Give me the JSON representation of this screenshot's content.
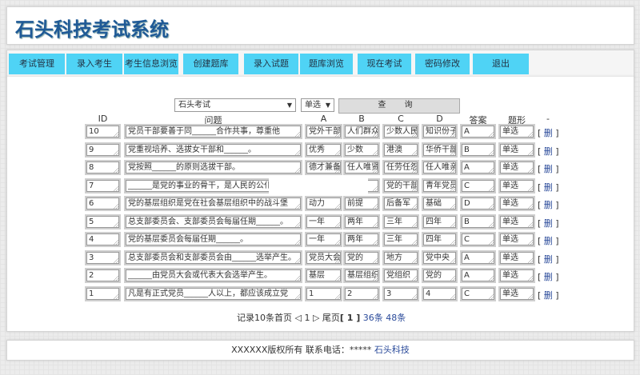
{
  "header": {
    "title": "石头科技考试系统"
  },
  "nav": [
    "考试管理",
    "录入考生",
    "考生信息浏览",
    "创建题库",
    "录入试题",
    "题库浏览",
    "现在考试",
    "密码修改",
    "退出"
  ],
  "filter": {
    "exam": "石头考试",
    "type": "单选",
    "query_button": "查 询"
  },
  "columns": [
    "ID",
    "问题",
    "A",
    "B",
    "C",
    "D",
    "答案",
    "题形",
    "-"
  ],
  "delete_label": "删",
  "rows": [
    {
      "id": "10",
      "q": "党员干部要善于同______合作共事，尊重他",
      "a": "党外干部",
      "b": "人们群众",
      "c": "少数人民",
      "d": "知识份子",
      "ans": "A",
      "type": "单选"
    },
    {
      "id": "9",
      "q": "党重视培养、选拔女干部和______。",
      "a": "优秀",
      "b": "少数",
      "c": "港澳",
      "d": "华侨干部",
      "ans": "B",
      "type": "单选"
    },
    {
      "id": "8",
      "q": "党按照______的原则选拔干部。",
      "a": "德才兼备",
      "b": "任人唯贤",
      "c": "任劳任怨",
      "d": "任人唯亲",
      "ans": "A",
      "type": "单选"
    },
    {
      "id": "7",
      "q": "______是党的事业的骨干，是人民的公仆",
      "a": "",
      "b": "",
      "c": "党的干部",
      "d": "青年党员",
      "ans": "C",
      "type": "单选"
    },
    {
      "id": "6",
      "q": "党的基层组织是党在社会基层组织中的战斗堡",
      "a": "动力",
      "b": "前提",
      "c": "后备军",
      "d": "基础",
      "ans": "D",
      "type": "单选"
    },
    {
      "id": "5",
      "q": "总支部委员会、支部委员会每届任期______。",
      "a": "一年",
      "b": "两年",
      "c": "三年",
      "d": "四年",
      "ans": "B",
      "type": "单选"
    },
    {
      "id": "4",
      "q": "党的基层委员会每届任期______。",
      "a": "一年",
      "b": "两年",
      "c": "三年",
      "d": "四年",
      "ans": "C",
      "type": "单选"
    },
    {
      "id": "3",
      "q": "总支部委员会和支部委员会由______选举产生。",
      "a": "党员大会",
      "b": "党的",
      "c": "地方",
      "d": "党中央",
      "ans": "A",
      "type": "单选"
    },
    {
      "id": "2",
      "q": "______由党员大会或代表大会选举产生。",
      "a": "基层",
      "b": "基层组织",
      "c": "党组织",
      "d": "党的",
      "ans": "A",
      "type": "单选"
    },
    {
      "id": "1",
      "q": "凡是有正式党员______人以上，都应该成立党",
      "a": "1",
      "b": "2",
      "c": "3",
      "d": "4",
      "ans": "C",
      "type": "单选"
    }
  ],
  "pager": {
    "text": "记录10条首页 ◁ 1 ▷ 尾页",
    "current": "[ 1 ]",
    "link1": "36条",
    "link2": "48条"
  },
  "footer": {
    "text": "XXXXXX版权所有 联系电话：***** ",
    "link": "石头科技"
  }
}
